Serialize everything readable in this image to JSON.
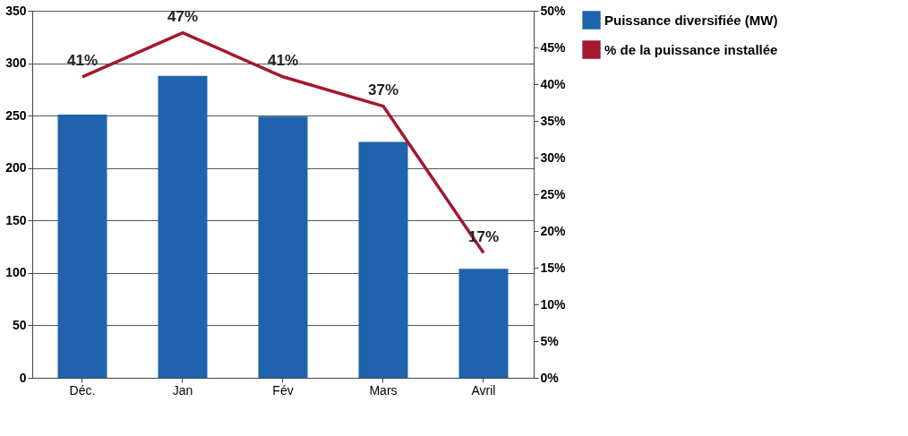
{
  "chart_data": {
    "type": "bar",
    "categories": [
      "Déc.",
      "Jan",
      "Fév",
      "Mars",
      "Avril"
    ],
    "series": [
      {
        "name": "Puissance diversifiée (MW)",
        "color": "#1f63ad",
        "values": [
          251,
          288,
          249,
          225,
          104
        ]
      },
      {
        "name": "% de la puissance installée",
        "type": "line",
        "axis": "y2",
        "color": "#a3182f",
        "values": [
          41,
          47,
          41,
          37,
          17
        ],
        "value_labels": [
          "41%",
          "47%",
          "41%",
          "37%",
          "17%"
        ]
      }
    ],
    "ylim": [
      0,
      350
    ],
    "yticks": [
      0,
      50,
      100,
      150,
      200,
      250,
      300,
      350
    ],
    "y2lim": [
      0,
      50
    ],
    "y2ticks": [
      {
        "value": 0,
        "label": "0%"
      },
      {
        "value": 5,
        "label": "5%"
      },
      {
        "value": 10,
        "label": "10%"
      },
      {
        "value": 15,
        "label": "15%"
      },
      {
        "value": 20,
        "label": "20%"
      },
      {
        "value": 25,
        "label": "25%"
      },
      {
        "value": 30,
        "label": "30%"
      },
      {
        "value": 35,
        "label": "35%"
      },
      {
        "value": 40,
        "label": "40%"
      },
      {
        "value": 45,
        "label": "45%"
      },
      {
        "value": 50,
        "label": "50%"
      }
    ],
    "grid": "y",
    "legend": "right",
    "marker": "none",
    "line_style": "solid"
  }
}
